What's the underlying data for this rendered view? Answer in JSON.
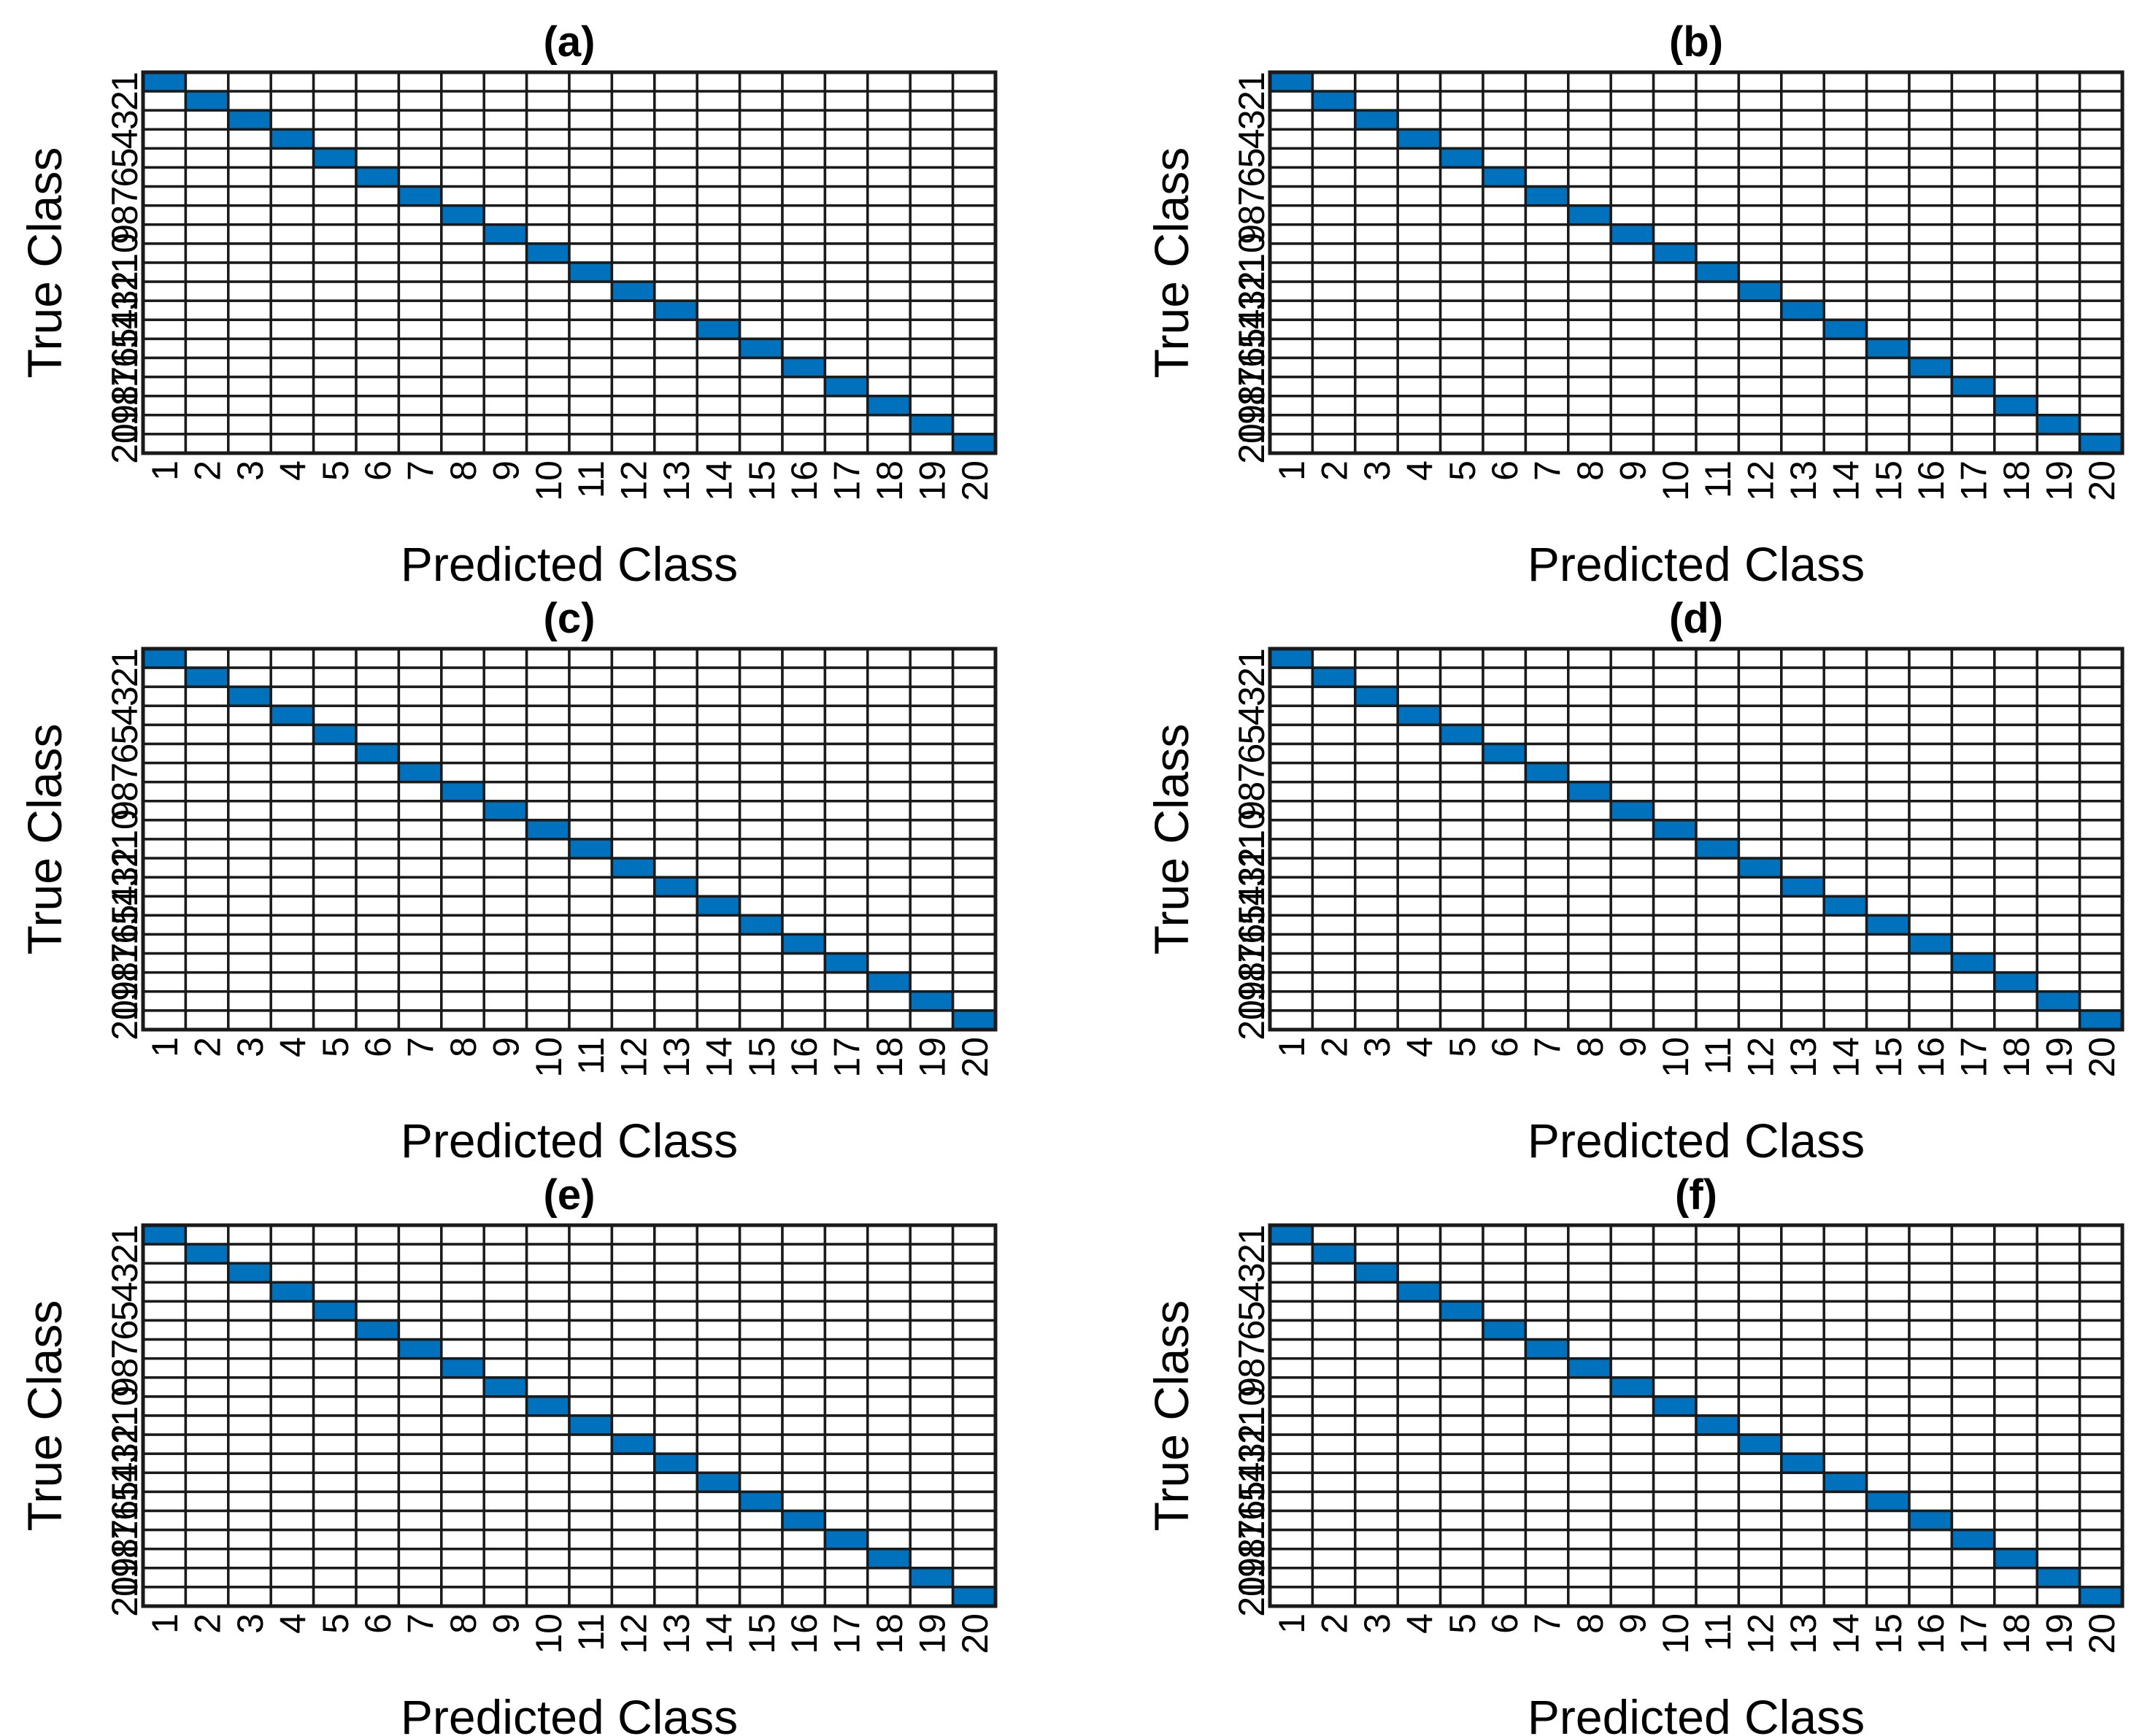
{
  "figure": {
    "panels": [
      "(a)",
      "(b)",
      "(c)",
      "(d)",
      "(e)",
      "(f)"
    ]
  },
  "chart_data": [
    {
      "type": "heatmap",
      "title": "(a)",
      "xlabel": "Predicted Class",
      "ylabel": "True Class",
      "classes": [
        "1",
        "2",
        "3",
        "4",
        "5",
        "6",
        "7",
        "8",
        "9",
        "10",
        "11",
        "12",
        "13",
        "14",
        "15",
        "16",
        "17",
        "18",
        "19",
        "20"
      ],
      "matrix": "identity",
      "diagonal_color": "#0072BD",
      "offdiag_color": "#ffffff"
    },
    {
      "type": "heatmap",
      "title": "(b)",
      "xlabel": "Predicted Class",
      "ylabel": "True Class",
      "classes": [
        "1",
        "2",
        "3",
        "4",
        "5",
        "6",
        "7",
        "8",
        "9",
        "10",
        "11",
        "12",
        "13",
        "14",
        "15",
        "16",
        "17",
        "18",
        "19",
        "20"
      ],
      "matrix": "identity",
      "diagonal_color": "#0072BD",
      "offdiag_color": "#ffffff"
    },
    {
      "type": "heatmap",
      "title": "(c)",
      "xlabel": "Predicted Class",
      "ylabel": "True Class",
      "classes": [
        "1",
        "2",
        "3",
        "4",
        "5",
        "6",
        "7",
        "8",
        "9",
        "10",
        "11",
        "12",
        "13",
        "14",
        "15",
        "16",
        "17",
        "18",
        "19",
        "20"
      ],
      "matrix": "identity",
      "diagonal_color": "#0072BD",
      "offdiag_color": "#ffffff"
    },
    {
      "type": "heatmap",
      "title": "(d)",
      "xlabel": "Predicted Class",
      "ylabel": "True Class",
      "classes": [
        "1",
        "2",
        "3",
        "4",
        "5",
        "6",
        "7",
        "8",
        "9",
        "10",
        "11",
        "12",
        "13",
        "14",
        "15",
        "16",
        "17",
        "18",
        "19",
        "20"
      ],
      "matrix": "identity",
      "diagonal_color": "#0072BD",
      "offdiag_color": "#ffffff"
    },
    {
      "type": "heatmap",
      "title": "(e)",
      "xlabel": "Predicted Class",
      "ylabel": "True Class",
      "classes": [
        "1",
        "2",
        "3",
        "4",
        "5",
        "6",
        "7",
        "8",
        "9",
        "10",
        "11",
        "12",
        "13",
        "14",
        "15",
        "16",
        "17",
        "18",
        "19",
        "20"
      ],
      "matrix": "identity",
      "diagonal_color": "#0072BD",
      "offdiag_color": "#ffffff"
    },
    {
      "type": "heatmap",
      "title": "(f)",
      "xlabel": "Predicted Class",
      "ylabel": "True Class",
      "classes": [
        "1",
        "2",
        "3",
        "4",
        "5",
        "6",
        "7",
        "8",
        "9",
        "10",
        "11",
        "12",
        "13",
        "14",
        "15",
        "16",
        "17",
        "18",
        "19",
        "20"
      ],
      "matrix": "identity",
      "diagonal_color": "#0072BD",
      "offdiag_color": "#ffffff"
    }
  ]
}
